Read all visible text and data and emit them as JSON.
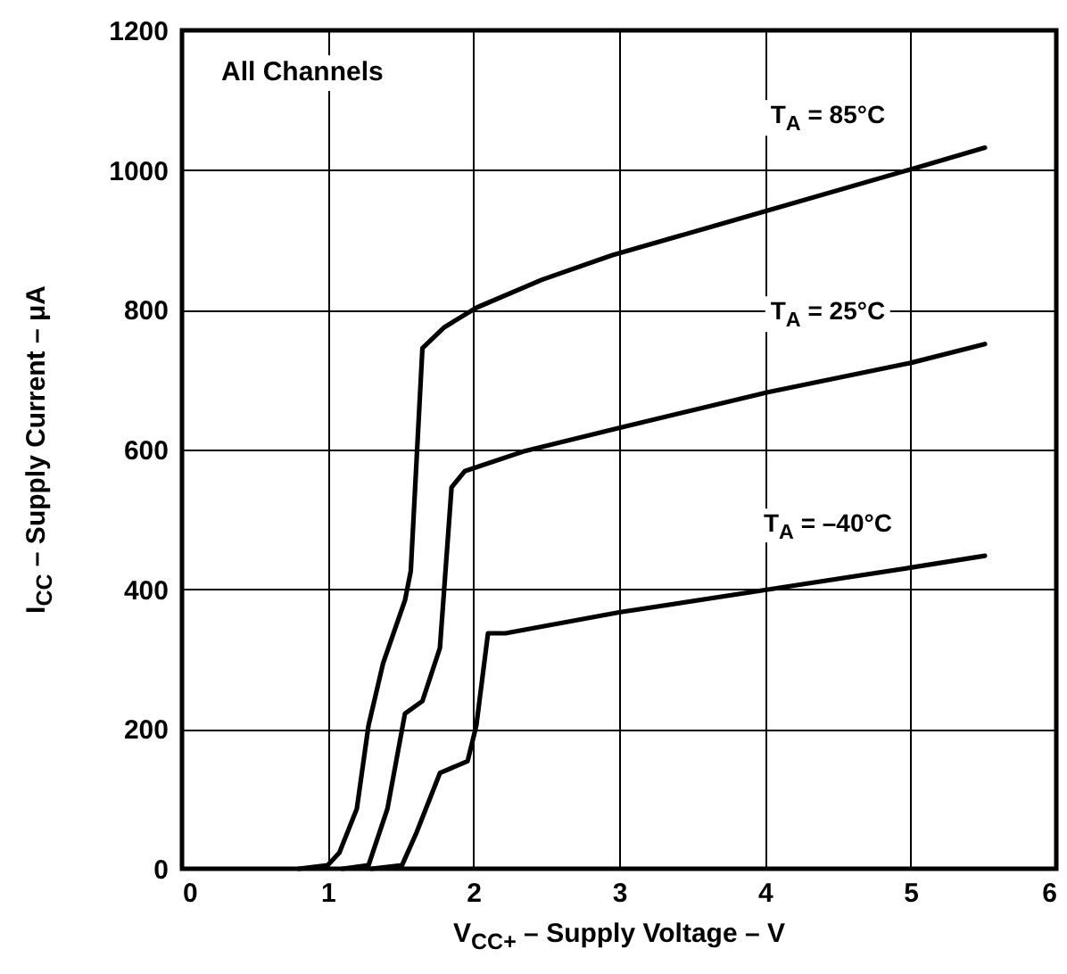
{
  "chart_data": {
    "type": "line",
    "xlabel": "V$_{CC+}$ – Supply Voltage – V",
    "ylabel": "I$_{CC}$ – Supply Current – μA",
    "annotations": [
      "All Channels"
    ],
    "series": [
      {
        "name": "T$_{A}$ = 85°C",
        "color": "#000000",
        "x": [
          0.8,
          1.0,
          1.08,
          1.2,
          1.28,
          1.38,
          1.53,
          1.57,
          1.65,
          1.8,
          2.02,
          2.47,
          2.95,
          4.02,
          5.0,
          5.51
        ],
        "values": [
          0,
          5,
          23,
          86,
          205,
          294,
          384,
          426,
          745,
          775,
          803,
          843,
          878,
          942,
          1001,
          1032
        ]
      },
      {
        "name": "T$_{A}$ = 25°C",
        "color": "#000000",
        "x": [
          1.1,
          1.28,
          1.41,
          1.53,
          1.65,
          1.77,
          1.85,
          1.94,
          2.34,
          3.0,
          4.02,
          5.0,
          5.51
        ],
        "values": [
          0,
          5,
          86,
          222,
          240,
          316,
          546,
          569,
          597,
          631,
          682,
          724,
          751
        ]
      },
      {
        "name": "T$_{A}$ = –40°C",
        "color": "#000000",
        "x": [
          1.3,
          1.51,
          1.61,
          1.77,
          1.96,
          2.02,
          2.1,
          2.22,
          3.0,
          4.0,
          5.0,
          5.51
        ],
        "values": [
          0,
          5,
          52,
          137,
          154,
          205,
          337,
          337,
          367,
          399,
          431,
          448
        ]
      }
    ],
    "xlim": [
      0,
      6
    ],
    "xticks": [
      0,
      1,
      2,
      3,
      4,
      5,
      6
    ],
    "ylim": [
      0,
      1200
    ],
    "yticks": [
      0,
      200,
      400,
      600,
      800,
      1000,
      1200
    ],
    "grid": true,
    "marker": "none",
    "line_style": "solid"
  }
}
